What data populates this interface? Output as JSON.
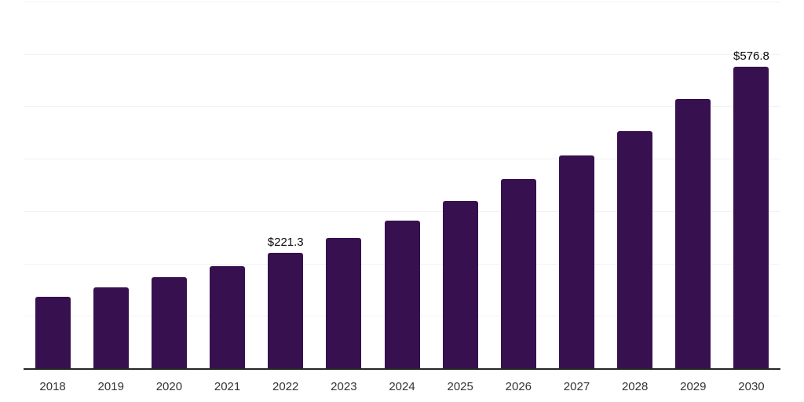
{
  "chart_data": {
    "type": "bar",
    "title": "",
    "xlabel": "",
    "ylabel": "",
    "categories": [
      "2018",
      "2019",
      "2020",
      "2021",
      "2022",
      "2023",
      "2024",
      "2025",
      "2026",
      "2027",
      "2028",
      "2029",
      "2030"
    ],
    "values": [
      138.1,
      155.9,
      175.9,
      196.3,
      221.3,
      250.3,
      283.2,
      320.3,
      363.3,
      408.4,
      454.3,
      515.3,
      576.8
    ],
    "data_labels": {
      "2022": "$221.3",
      "2030": "$576.8"
    },
    "ylim": [
      0,
      700
    ],
    "gridline_interval": 100,
    "grid": true,
    "y_axis_tick_labels_visible": false,
    "legend": "none",
    "colors": {
      "bar": "#37114F",
      "gridline": "#F2F2F4",
      "axis_line": "#262626",
      "value_label": "#0A0A0A",
      "tick_label": "#333333",
      "background": "#FFFFFF"
    }
  }
}
